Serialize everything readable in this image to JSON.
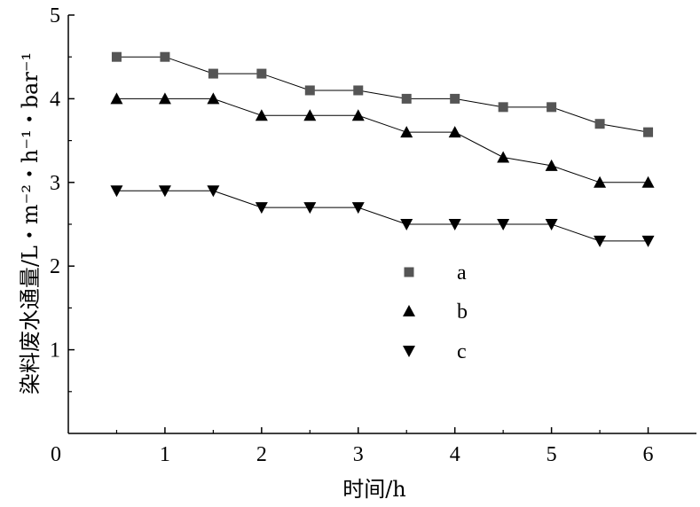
{
  "chart_data": {
    "type": "line",
    "xlabel": "时间/h",
    "ylabel": "染料废水通量/L・m⁻²・h⁻¹・bar⁻¹",
    "xlim": [
      0,
      6.5
    ],
    "ylim": [
      0,
      5
    ],
    "xticks": [
      0,
      1,
      2,
      3,
      4,
      5,
      6
    ],
    "yticks": [
      1,
      2,
      3,
      4,
      5
    ],
    "grid": false,
    "legend_position": "center",
    "x": [
      0.5,
      1.0,
      1.5,
      2.0,
      2.5,
      3.0,
      3.5,
      4.0,
      4.5,
      5.0,
      5.5,
      6.0
    ],
    "series": [
      {
        "name": "a",
        "marker": "square",
        "color": "#555555",
        "values": [
          4.5,
          4.5,
          4.3,
          4.3,
          4.1,
          4.1,
          4.0,
          4.0,
          3.9,
          3.9,
          3.7,
          3.6
        ]
      },
      {
        "name": "b",
        "marker": "triangle-up",
        "color": "#000000",
        "values": [
          4.0,
          4.0,
          4.0,
          3.8,
          3.8,
          3.8,
          3.6,
          3.6,
          3.3,
          3.2,
          3.0,
          3.0
        ]
      },
      {
        "name": "c",
        "marker": "triangle-down",
        "color": "#000000",
        "values": [
          2.9,
          2.9,
          2.9,
          2.7,
          2.7,
          2.7,
          2.5,
          2.5,
          2.5,
          2.5,
          2.3,
          2.3
        ]
      }
    ]
  }
}
